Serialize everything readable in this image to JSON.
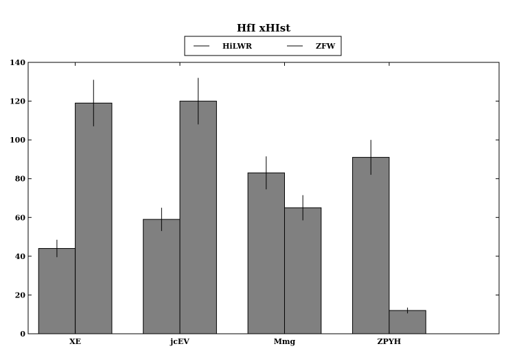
{
  "chart_data": {
    "type": "bar",
    "title": "HfI xHIst",
    "xlabel": "",
    "ylabel": "",
    "categories": [
      "XE",
      "jcEV",
      "Mmg",
      "ZPYH"
    ],
    "series": [
      {
        "name": "HiLWR",
        "values": [
          44,
          59,
          83,
          91
        ],
        "errors": [
          4.5,
          6,
          8.5,
          9
        ]
      },
      {
        "name": "ZFW",
        "values": [
          119,
          120,
          65,
          12
        ],
        "errors": [
          12,
          12,
          6.5,
          1.5
        ]
      }
    ],
    "ylim": [
      0,
      140
    ],
    "yticks": [
      0,
      20,
      40,
      60,
      80,
      100,
      120,
      140
    ],
    "grid": false,
    "legend": "top-center",
    "colors": {
      "bar": "#808080",
      "edge": "#000000"
    }
  }
}
